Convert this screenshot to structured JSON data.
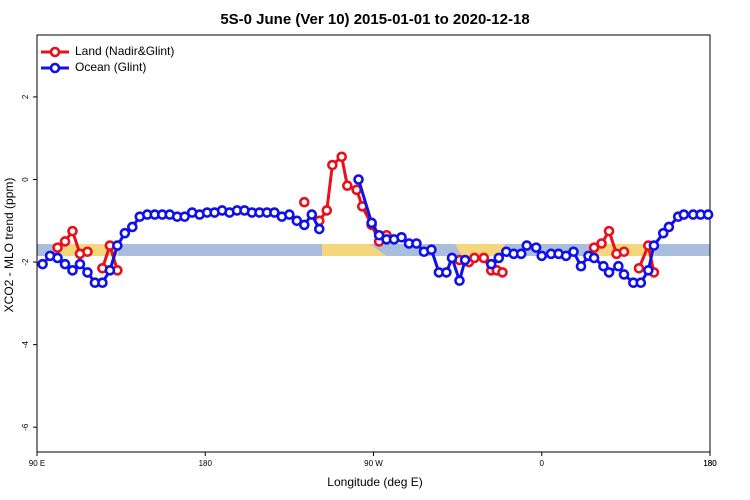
{
  "chart_data": {
    "type": "line",
    "title": "5S-0 June (Ver 10)   2015-01-01 to 2020-12-18",
    "x_label": "Longitude (deg E)",
    "y_label": "XCO2 - MLO trend (ppm)",
    "xlim": [
      90,
      450
    ],
    "ylim": [
      -6.6,
      3.5
    ],
    "xticks": [
      {
        "value": 90,
        "label": "90 E"
      },
      180,
      {
        "value": 270,
        "label": "90 W"
      },
      {
        "value": 360,
        "label": "0"
      },
      {
        "value": 450,
        "label": "180"
      }
    ],
    "xticks_extra": [
      {
        "value": 450,
        "label": "180"
      }
    ],
    "yticks": [
      2,
      0,
      -2,
      -4,
      -6
    ],
    "legend": "top-left",
    "series": [
      {
        "name": "Land (Nadir&Glint)",
        "color": "#e8101a",
        "x": [
          101,
          105,
          109,
          113,
          117,
          121,
          125,
          129,
          133,
          183,
          233,
          237,
          241,
          245,
          248,
          253,
          256,
          261,
          264,
          269,
          273,
          277,
          300,
          316,
          321,
          324,
          329,
          333,
          336,
          339,
          360,
          388,
          392,
          396,
          400,
          404,
          408,
          412,
          417,
          420
        ],
        "values": [
          -1.65,
          -1.5,
          -1.25,
          -1.8,
          -1.75,
          null,
          -2.15,
          -1.6,
          -2.2,
          null,
          -0.55,
          null,
          -1.0,
          -0.75,
          0.35,
          0.55,
          -0.15,
          -0.25,
          -0.65,
          -1.1,
          -1.5,
          -1.35,
          null,
          -1.95,
          -2.0,
          -1.9,
          -1.9,
          -2.2,
          -2.2,
          -2.25,
          null,
          -1.65,
          -1.55,
          -1.25,
          -1.8,
          -1.75,
          null,
          -2.15,
          -1.6,
          -2.25
        ]
      },
      {
        "name": "Ocean (Glint)",
        "color": "#1010e8",
        "x": [
          93,
          97,
          101,
          105,
          109,
          113,
          117,
          121,
          125,
          129,
          133,
          137,
          141,
          145,
          149,
          153,
          157,
          161,
          165,
          169,
          173,
          177,
          181,
          185,
          189,
          193,
          197,
          201,
          205,
          209,
          213,
          217,
          221,
          225,
          229,
          233,
          237,
          241,
          250,
          262,
          269,
          273,
          277,
          281,
          285,
          289,
          293,
          297,
          301,
          305,
          309,
          312,
          316,
          319,
          325,
          333,
          337,
          341,
          345,
          349,
          352,
          357,
          360,
          365,
          369,
          373,
          377,
          381,
          385,
          388,
          393,
          396,
          401,
          404,
          409,
          413,
          417,
          420,
          425,
          428,
          433,
          436,
          441,
          445,
          449
        ],
        "values": [
          -2.05,
          -1.85,
          -1.9,
          -2.05,
          -2.2,
          -2.05,
          -2.25,
          -2.5,
          -2.5,
          -2.2,
          -1.6,
          -1.3,
          -1.15,
          -0.9,
          -0.85,
          -0.85,
          -0.85,
          -0.85,
          -0.9,
          -0.9,
          -0.8,
          -0.85,
          -0.8,
          -0.8,
          -0.75,
          -0.8,
          -0.75,
          -0.75,
          -0.8,
          -0.8,
          -0.8,
          -0.8,
          -0.9,
          -0.85,
          -1.0,
          -1.1,
          -0.85,
          -1.2,
          null,
          0.0,
          -1.05,
          -1.35,
          -1.45,
          -1.45,
          -1.4,
          -1.55,
          -1.55,
          -1.75,
          -1.7,
          -2.25,
          -2.25,
          -1.9,
          -2.45,
          -1.95,
          null,
          -2.05,
          -1.9,
          -1.75,
          -1.8,
          -1.8,
          -1.6,
          -1.65,
          -1.85,
          -1.8,
          -1.8,
          -1.85,
          -1.75,
          -2.1,
          -1.85,
          -1.9,
          -2.1,
          -2.25,
          -2.1,
          -2.3,
          -2.5,
          -2.5,
          -2.2,
          -1.6,
          -1.3,
          -1.15,
          -0.9,
          -0.85,
          -0.85,
          -0.85,
          -0.85
        ]
      }
    ]
  }
}
